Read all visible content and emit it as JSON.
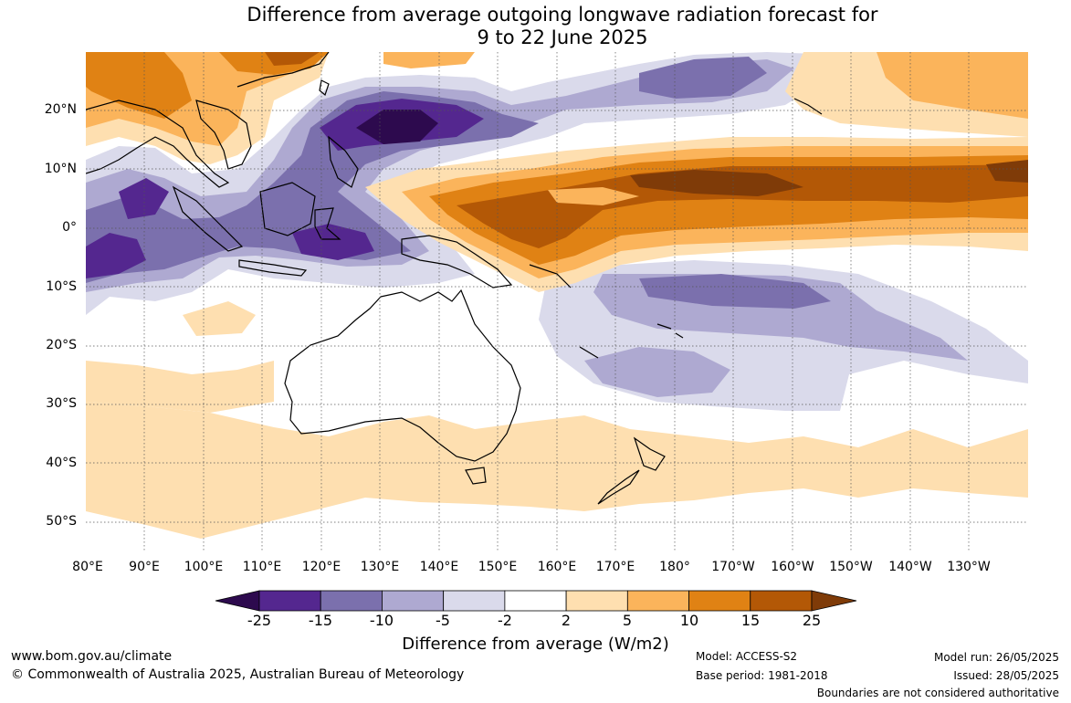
{
  "title": {
    "line1": "Difference from average outgoing longwave radiation forecast for",
    "line2": "9 to 22 June 2025"
  },
  "map": {
    "lat_labels": [
      "20°N",
      "10°N",
      "0°",
      "10°S",
      "20°S",
      "30°S",
      "40°S",
      "50°S"
    ],
    "lon_labels": [
      "80°E",
      "90°E",
      "100°E",
      "110°E",
      "120°E",
      "130°E",
      "140°E",
      "150°E",
      "160°E",
      "170°E",
      "180°",
      "170°W",
      "160°W",
      "150°W",
      "140°W",
      "130°W"
    ]
  },
  "colorbar": {
    "ticks": [
      "-25",
      "-15",
      "-10",
      "-5",
      "-2",
      "2",
      "5",
      "10",
      "15",
      "25"
    ],
    "colors": [
      "#2d0a4e",
      "#54278f",
      "#7b70ad",
      "#aea9d1",
      "#dadaeb",
      "#ffffff",
      "#fedfb0",
      "#fbb45b",
      "#e08214",
      "#b35806",
      "#7f3b08"
    ],
    "title": "Difference from average (W/m2)"
  },
  "footer": {
    "website": "www.bom.gov.au/climate",
    "copyright": "© Commonwealth of Australia 2025, Australian Bureau of Meteorology",
    "model": "Model: ACCESS-S2",
    "base_period": "Base period: 1981-2018",
    "model_run": "Model run: 26/05/2025",
    "issued": "Issued: 28/05/2025",
    "boundaries": "Boundaries are not considered authoritative"
  }
}
